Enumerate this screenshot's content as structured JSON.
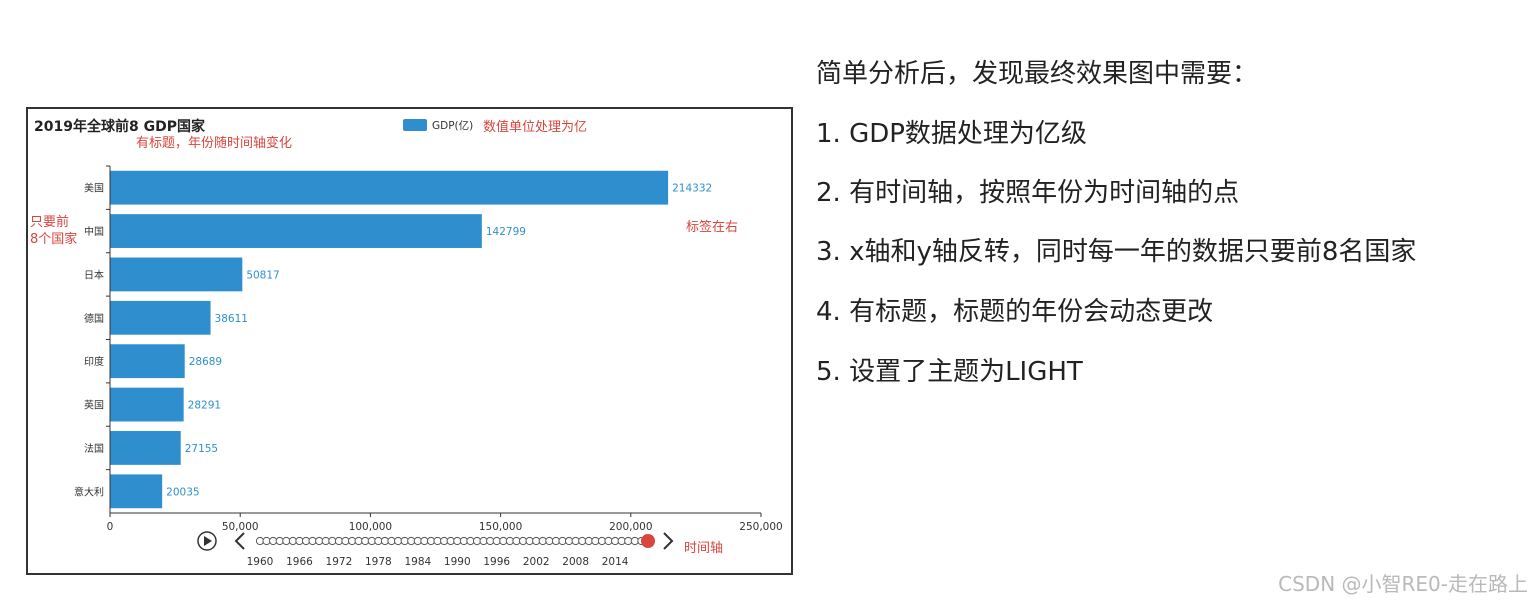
{
  "chart_data": {
    "type": "bar",
    "orientation": "horizontal",
    "title": "2019年全球前8 GDP国家",
    "categories": [
      "美国",
      "中国",
      "日本",
      "德国",
      "印度",
      "英国",
      "法国",
      "意大利"
    ],
    "series": [
      {
        "name": "GDP(亿)",
        "values": [
          214332,
          142799,
          50817,
          38611,
          28689,
          28291,
          27155,
          20035
        ],
        "color": "#2f8fce"
      }
    ],
    "xlim": [
      0,
      250000
    ],
    "xticks": [
      "0",
      "50,000",
      "100,000",
      "150,000",
      "200,000",
      "250,000"
    ],
    "legend_position": "top-center",
    "label_position": "right",
    "timeline": {
      "labels": [
        "1960",
        "1966",
        "1972",
        "1978",
        "1984",
        "1990",
        "1996",
        "2002",
        "2008",
        "2014"
      ],
      "current": "2019",
      "start_year": 1960,
      "end_year": 2019
    }
  },
  "annotations": {
    "title_note": "有标题，年份随时间轴变化",
    "legend_note": "数值单位处理为亿",
    "top8_note_line1": "只要前",
    "top8_note_line2": "8个国家",
    "label_note": "标签在右",
    "timeline_note": "时间轴"
  },
  "notes": {
    "heading": "简单分析后，发现最终效果图中需要：",
    "items": [
      "1. GDP数据处理为亿级",
      "2. 有时间轴，按照年份为时间轴的点",
      "3. x轴和y轴反转，同时每一年的数据只要前8名国家",
      "4. 有标题，标题的年份会动态更改",
      "5. 设置了主题为LIGHT"
    ]
  },
  "watermark": "CSDN @小智RE0-走在路上",
  "colors": {
    "bar": "#2f8fce",
    "annotation": "#d9453c",
    "timeline_active": "#d9453c"
  }
}
